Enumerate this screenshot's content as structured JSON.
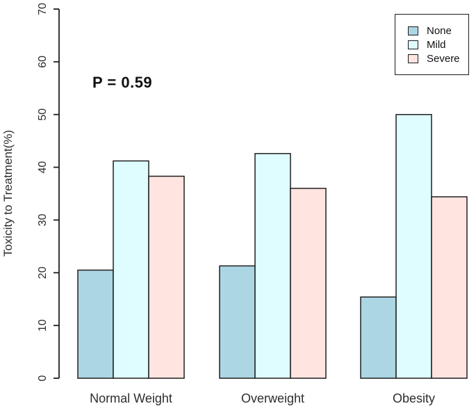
{
  "chart_data": {
    "type": "bar",
    "title": "",
    "annotation": "P = 0.59",
    "categories": [
      "Normal Weight",
      "Overweight",
      "Obesity"
    ],
    "series": [
      {
        "name": "None",
        "color": "#ACD6E4",
        "values": [
          20.5,
          21.3,
          15.4
        ]
      },
      {
        "name": "Mild",
        "color": "#DFFCFE",
        "values": [
          41.2,
          42.6,
          50.0
        ]
      },
      {
        "name": "Severe",
        "color": "#FFE4E0",
        "values": [
          38.3,
          36.0,
          34.4
        ]
      }
    ],
    "xlabel": "",
    "ylabel": "Toxicity to Treatment(%)",
    "ylim": [
      0,
      70
    ],
    "yticks": [
      0,
      10,
      20,
      30,
      40,
      50,
      60,
      70
    ],
    "legend_position": "top-right",
    "grid": false,
    "bar_border_color": "#1f1f1f",
    "axis_color": "#1f1f1f"
  }
}
